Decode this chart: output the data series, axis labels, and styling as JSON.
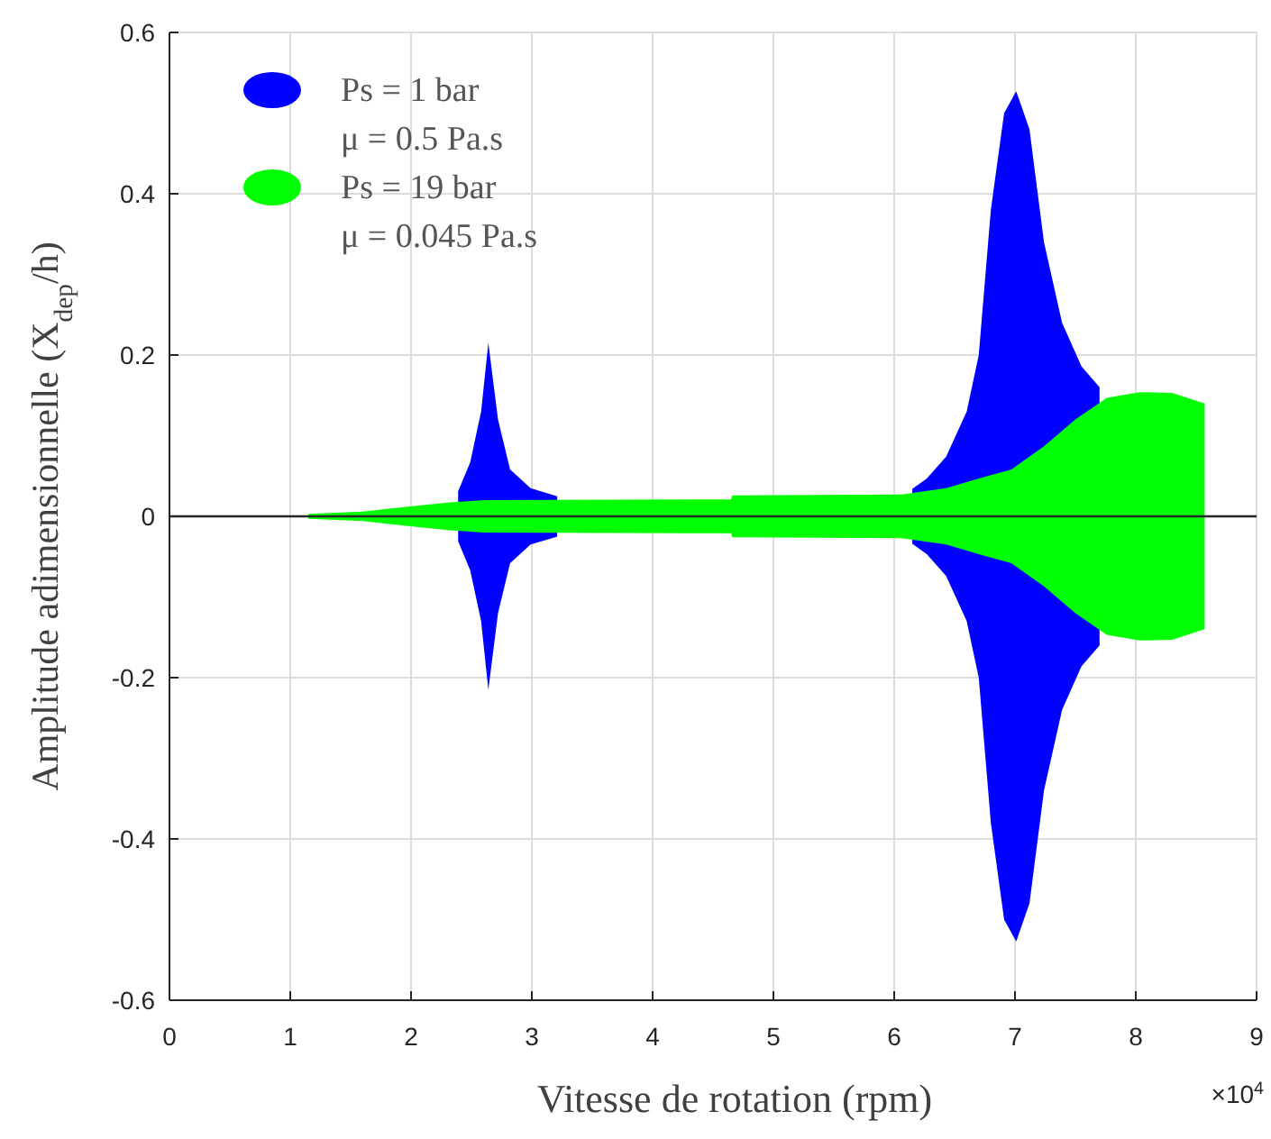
{
  "chart_data": {
    "type": "area",
    "xlabel": "Vitesse de rotation (rpm)",
    "ylabel": "Amplitude adimensionnelle  (X$_{dep}$/h)",
    "xlim": [
      0,
      9
    ],
    "ylim": [
      -0.6,
      0.6
    ],
    "xticks": [
      0,
      1,
      2,
      3,
      4,
      5,
      6,
      7,
      8,
      9
    ],
    "yticks": [
      -0.6,
      -0.4,
      -0.2,
      0,
      0.2,
      0.4,
      0.6
    ],
    "grid": true,
    "legend": "top left",
    "ref_lines": [
      {
        "axis": "y",
        "value": 0,
        "color": "#262626"
      }
    ],
    "annotations": [
      "×10$^{4}$"
    ],
    "series": [
      {
        "name": "Ps = 1 bar\nμ = 0.5 Pa.s",
        "color": "#0000ff",
        "x": [
          2.39,
          2.49,
          2.58,
          2.64,
          2.72,
          2.82,
          2.99,
          3.21,
          4.5,
          6.15,
          6.27,
          6.43,
          6.6,
          6.7,
          6.8,
          6.91,
          7.01,
          7.12,
          7.24,
          7.39,
          7.55,
          7.7
        ],
        "values": [
          0.031,
          0.067,
          0.13,
          0.215,
          0.12,
          0.058,
          0.035,
          0.025,
          null,
          0.034,
          0.047,
          0.074,
          0.13,
          0.2,
          0.38,
          0.5,
          0.527,
          0.48,
          0.34,
          0.24,
          0.186,
          0.16
        ]
      },
      {
        "color": "#0000ff",
        "x": [
          2.39,
          2.49,
          2.58,
          2.64,
          2.72,
          2.82,
          2.99,
          3.21,
          4.5,
          6.15,
          6.27,
          6.43,
          6.6,
          6.7,
          6.8,
          6.91,
          7.01,
          7.12,
          7.24,
          7.39,
          7.55,
          7.7
        ],
        "values": [
          -0.031,
          -0.067,
          -0.13,
          -0.215,
          -0.12,
          -0.058,
          -0.035,
          -0.025,
          null,
          -0.034,
          -0.047,
          -0.074,
          -0.13,
          -0.2,
          -0.38,
          -0.5,
          -0.527,
          -0.48,
          -0.34,
          -0.24,
          -0.186,
          -0.16
        ]
      },
      {
        "name": "Ps = 19 bar\nμ = 0.045 Pa.s",
        "color": "#00ff00",
        "x": [
          1.15,
          1.6,
          1.85,
          2.3,
          2.6,
          4.65,
          4.66,
          6.06,
          6.43,
          6.7,
          6.97,
          7.24,
          7.5,
          7.76,
          8.03,
          8.3,
          8.57
        ],
        "values": [
          0.003,
          0.006,
          0.01,
          0.017,
          0.02,
          0.021,
          0.026,
          0.027,
          0.035,
          0.047,
          0.058,
          0.087,
          0.12,
          0.147,
          0.154,
          0.153,
          0.14
        ]
      },
      {
        "color": "#00ff00",
        "x": [
          1.15,
          1.6,
          1.85,
          2.3,
          2.6,
          4.65,
          4.66,
          6.06,
          6.43,
          6.7,
          6.97,
          7.24,
          7.5,
          7.76,
          8.03,
          8.3,
          8.57
        ],
        "values": [
          -0.003,
          -0.006,
          -0.01,
          -0.017,
          -0.02,
          -0.021,
          -0.026,
          -0.027,
          -0.035,
          -0.047,
          -0.058,
          -0.087,
          -0.12,
          -0.147,
          -0.154,
          -0.153,
          -0.14
        ]
      }
    ]
  }
}
